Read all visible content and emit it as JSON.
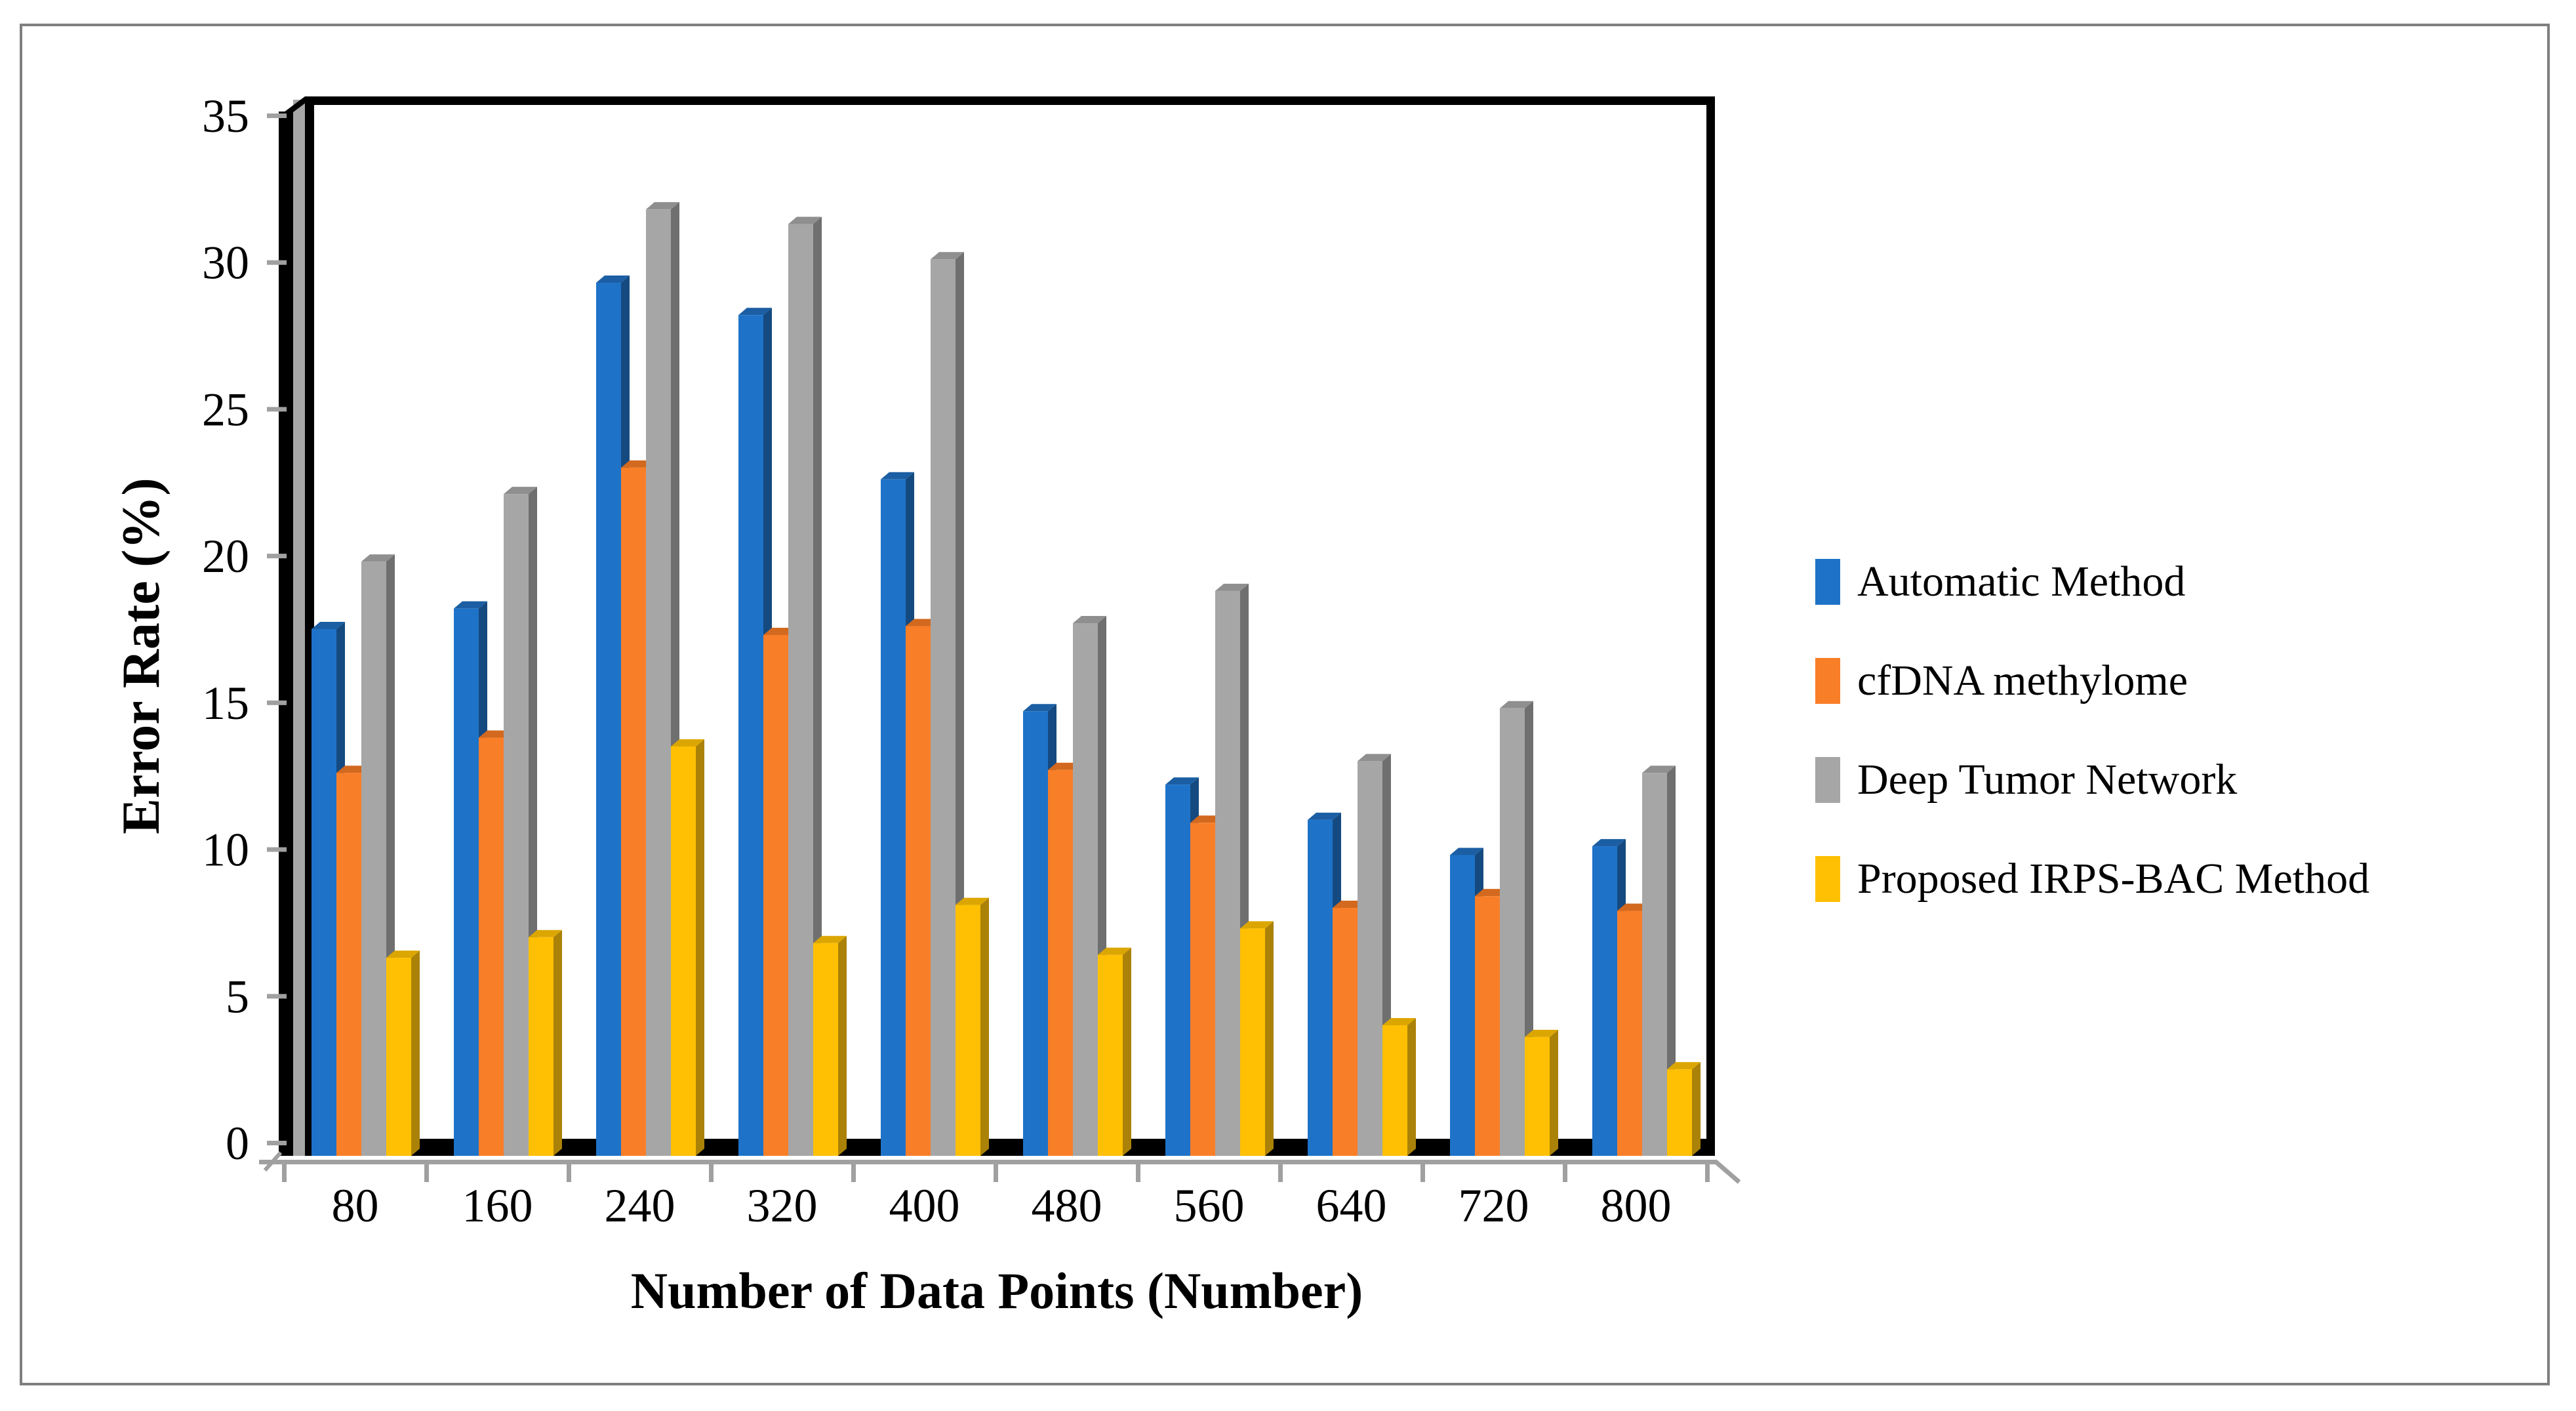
{
  "figure": {
    "background": "#FFFFFF",
    "border_color": "#7F7F7F"
  },
  "colors": {
    "axis_line": "#A0A0A0",
    "frame": "#000000",
    "wall_side": "#A6A6A6",
    "tick": "#A0A0A0",
    "text": "#000000"
  },
  "chart_data": {
    "type": "bar",
    "style": "3d-clustered-column",
    "title": "",
    "xlabel": "Number of Data Points (Number)",
    "ylabel": "Error Rate (%)",
    "categories": [
      "80",
      "160",
      "240",
      "320",
      "400",
      "480",
      "560",
      "640",
      "720",
      "800"
    ],
    "ylim": [
      0,
      35
    ],
    "yticks": [
      0,
      5,
      10,
      15,
      20,
      25,
      30,
      35
    ],
    "grid": false,
    "legend_position": "right",
    "series": [
      {
        "name": "Automatic Method",
        "color": "#1E73C8",
        "color_top": "#1B5EA3",
        "color_side": "#154A80",
        "values": [
          17.5,
          18.2,
          29.3,
          28.2,
          22.6,
          14.7,
          12.2,
          11.0,
          9.8,
          10.1
        ]
      },
      {
        "name": "cfDNA methylome",
        "color": "#F97E28",
        "color_top": "#D2691E",
        "color_side": "#B0540F",
        "values": [
          12.6,
          13.8,
          23.0,
          17.3,
          17.6,
          12.7,
          10.9,
          8.0,
          8.4,
          7.9
        ]
      },
      {
        "name": "Deep Tumor Network",
        "color": "#A6A6A6",
        "color_top": "#8F8F8F",
        "color_side": "#6F6F6F",
        "values": [
          19.8,
          22.1,
          31.8,
          31.3,
          30.1,
          17.7,
          18.8,
          13.0,
          14.8,
          12.6
        ]
      },
      {
        "name": "Proposed IRPS-BAC Method",
        "color": "#FFC003",
        "color_top": "#DCA602",
        "color_side": "#AB8208",
        "values": [
          6.3,
          7.0,
          13.5,
          6.8,
          8.1,
          6.4,
          7.3,
          4.0,
          3.6,
          2.5
        ]
      }
    ]
  }
}
